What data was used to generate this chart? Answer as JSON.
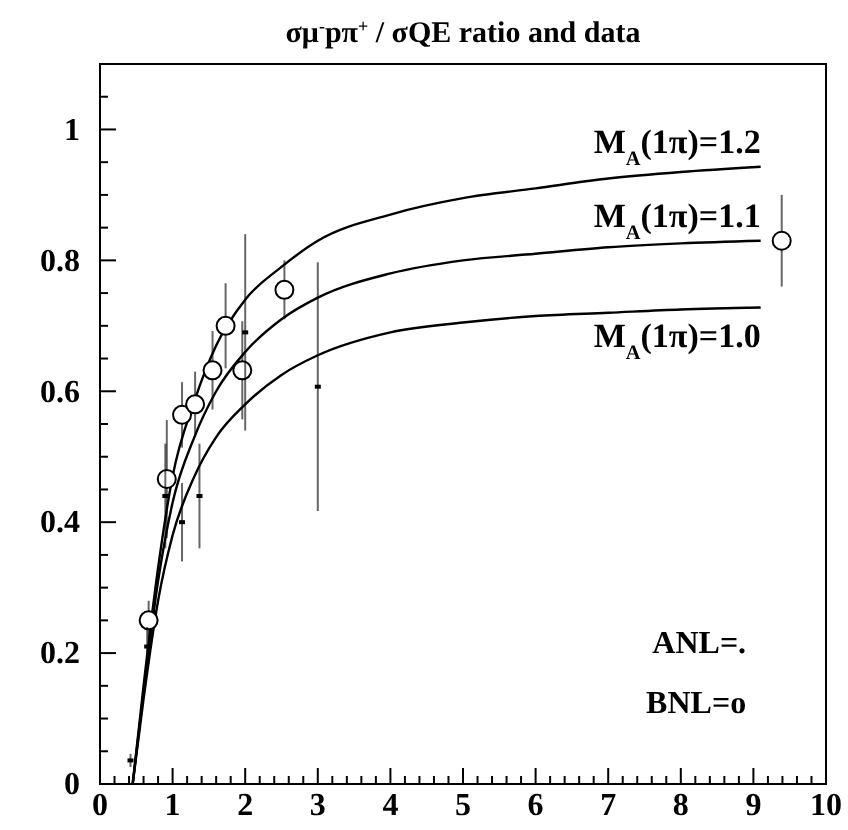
{
  "chart_data": {
    "type": "line",
    "title": "σμ$^{-}$pπ$^{+}$ / σQE ratio and data",
    "xlim": [
      0,
      10
    ],
    "ylim": [
      0,
      1.1
    ],
    "xticks": [
      0,
      {
        "value": 0.2,
        "label": null
      },
      {
        "value": 0.4,
        "label": null
      },
      {
        "value": 0.6,
        "label": null
      },
      {
        "value": 0.8,
        "label": null
      },
      1,
      {
        "value": 1.2,
        "label": null
      },
      {
        "value": 1.4,
        "label": null
      },
      {
        "value": 1.6,
        "label": null
      },
      {
        "value": 1.8,
        "label": null
      },
      2,
      {
        "value": 2.2,
        "label": null
      },
      {
        "value": 2.4,
        "label": null
      },
      {
        "value": 2.6,
        "label": null
      },
      {
        "value": 2.8,
        "label": null
      },
      3,
      {
        "value": 3.2,
        "label": null
      },
      {
        "value": 3.4,
        "label": null
      },
      {
        "value": 3.6,
        "label": null
      },
      {
        "value": 3.8,
        "label": null
      },
      4,
      {
        "value": 4.2,
        "label": null
      },
      {
        "value": 4.4,
        "label": null
      },
      {
        "value": 4.6,
        "label": null
      },
      {
        "value": 4.8,
        "label": null
      },
      5,
      {
        "value": 5.2,
        "label": null
      },
      {
        "value": 5.4,
        "label": null
      },
      {
        "value": 5.6,
        "label": null
      },
      {
        "value": 5.8,
        "label": null
      },
      6,
      {
        "value": 6.2,
        "label": null
      },
      {
        "value": 6.4,
        "label": null
      },
      {
        "value": 6.6,
        "label": null
      },
      {
        "value": 6.8,
        "label": null
      },
      7,
      {
        "value": 7.2,
        "label": null
      },
      {
        "value": 7.4,
        "label": null
      },
      {
        "value": 7.6,
        "label": null
      },
      {
        "value": 7.8,
        "label": null
      },
      8,
      {
        "value": 8.2,
        "label": null
      },
      {
        "value": 8.4,
        "label": null
      },
      {
        "value": 8.6,
        "label": null
      },
      {
        "value": 8.8,
        "label": null
      },
      9,
      {
        "value": 9.2,
        "label": null
      },
      {
        "value": 9.4,
        "label": null
      },
      {
        "value": 9.6,
        "label": null
      },
      {
        "value": 9.8,
        "label": null
      },
      10
    ],
    "yticks": [
      0,
      {
        "value": 0.05,
        "label": null
      },
      {
        "value": 0.1,
        "label": null
      },
      {
        "value": 0.15,
        "label": null
      },
      0.2,
      {
        "value": 0.25,
        "label": null
      },
      {
        "value": 0.3,
        "label": null
      },
      {
        "value": 0.35,
        "label": null
      },
      0.4,
      {
        "value": 0.45,
        "label": null
      },
      {
        "value": 0.5,
        "label": null
      },
      {
        "value": 0.55,
        "label": null
      },
      0.6,
      {
        "value": 0.65,
        "label": null
      },
      {
        "value": 0.7,
        "label": null
      },
      {
        "value": 0.75,
        "label": null
      },
      0.8,
      {
        "value": 0.85,
        "label": null
      },
      {
        "value": 0.9,
        "label": null
      },
      {
        "value": 0.95,
        "label": null
      },
      1,
      {
        "value": 1.05,
        "label": null
      }
    ],
    "grid": false,
    "line_style": "solid",
    "annotations": [
      "ANL=.",
      "BNL=o"
    ],
    "series": [
      {
        "name": "M$_{A}$(1π)=1.2",
        "color": "#000000",
        "x": [
          0.45,
          0.6,
          0.8,
          1.0,
          1.3,
          1.6,
          2.0,
          2.5,
          3,
          4,
          5,
          6,
          7,
          8,
          9.1
        ],
        "values": [
          0,
          0.15,
          0.33,
          0.47,
          0.585,
          0.67,
          0.74,
          0.79,
          0.83,
          0.87,
          0.895,
          0.91,
          0.925,
          0.935,
          0.943
        ]
      },
      {
        "name": "M$_{A}$(1π)=1.1",
        "color": "#000000",
        "x": [
          0.45,
          0.6,
          0.8,
          1.0,
          1.3,
          1.6,
          2.0,
          2.5,
          3,
          4,
          5,
          6,
          7,
          8,
          9.1
        ],
        "values": [
          0,
          0.14,
          0.31,
          0.43,
          0.53,
          0.6,
          0.66,
          0.71,
          0.743,
          0.78,
          0.8,
          0.81,
          0.82,
          0.826,
          0.83
        ]
      },
      {
        "name": "M$_{A}$(1π)=1.0",
        "color": "#000000",
        "x": [
          0.45,
          0.6,
          0.8,
          1.0,
          1.3,
          1.6,
          2.0,
          2.5,
          3,
          4,
          5,
          6,
          7,
          8,
          9.1
        ],
        "values": [
          0,
          0.13,
          0.28,
          0.38,
          0.47,
          0.53,
          0.58,
          0.625,
          0.655,
          0.69,
          0.705,
          0.715,
          0.72,
          0.725,
          0.728
        ]
      },
      {
        "type": "scatter",
        "color": "#000000",
        "marker": "circle",
        "x": [
          0.67,
          0.92,
          1.13,
          1.31,
          1.55,
          1.73,
          1.96,
          2.54,
          9.39
        ],
        "values": [
          0.25,
          0.466,
          0.564,
          0.58,
          0.632,
          0.7,
          0.632,
          0.755,
          0.83
        ],
        "errors": [
          0.03,
          0.09,
          0.05,
          0.05,
          0.06,
          0.065,
          0.075,
          0.045,
          0.07
        ]
      },
      {
        "type": "scatter",
        "color": "#000000",
        "marker": "square",
        "x": [
          0.42,
          0.65,
          0.9,
          1.13,
          1.37,
          2.0,
          3.0
        ],
        "values": [
          0.036,
          0.21,
          0.44,
          0.4,
          0.44,
          0.69,
          0.607
        ],
        "errors": [
          0.01,
          0.03,
          0.08,
          0.06,
          0.08,
          0.15,
          0.19
        ]
      }
    ]
  }
}
